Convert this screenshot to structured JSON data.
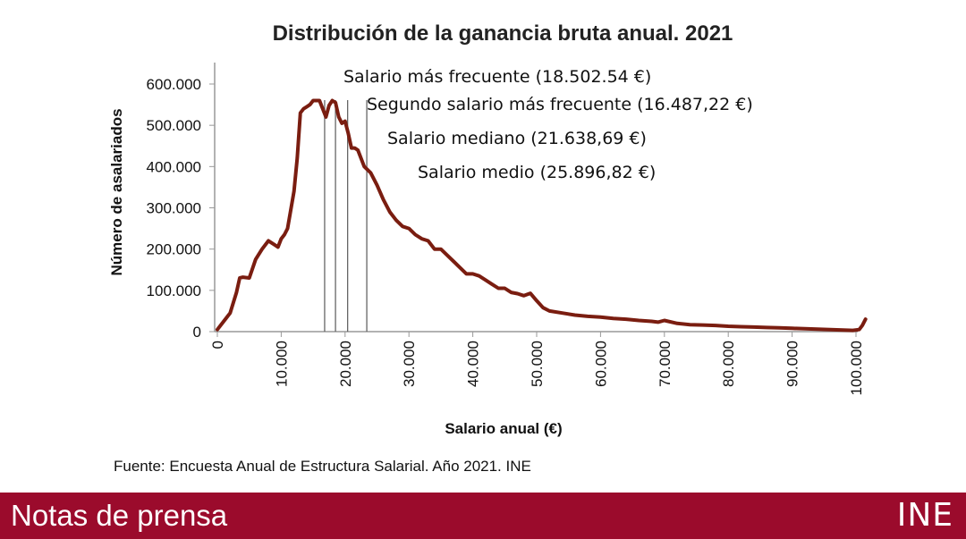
{
  "chart_data": {
    "type": "line",
    "title": "Distribución de la ganancia bruta anual. 2021",
    "xlabel": "Salario anual (€)",
    "ylabel": "Número de asalariados",
    "xlim": [
      0,
      102000
    ],
    "ylim": [
      0,
      650000
    ],
    "x_ticks": [
      0,
      10000,
      20000,
      30000,
      40000,
      50000,
      60000,
      70000,
      80000,
      90000,
      100000
    ],
    "x_tick_labels": [
      "0",
      "10.000",
      "20.000",
      "30.000",
      "40.000",
      "50.000",
      "60.000",
      "70.000",
      "80.000",
      "90.000",
      "100.000"
    ],
    "y_ticks": [
      0,
      100000,
      200000,
      300000,
      400000,
      500000,
      600000
    ],
    "y_tick_labels": [
      "0",
      "100.000",
      "200.000",
      "300.000",
      "400.000",
      "500.000",
      "600.000"
    ],
    "line_color": "#7a1d10",
    "series": [
      {
        "x": [
          0,
          1000,
          2000,
          3000,
          3500,
          4000,
          5000,
          6000,
          7000,
          8000,
          9000,
          9500,
          10000,
          10500,
          11000,
          12000,
          12500,
          13000,
          13500,
          14000,
          14500,
          15000,
          16000,
          17000,
          17500,
          18000,
          18500,
          19000,
          19500,
          20000,
          20500,
          21000,
          21500,
          22000,
          23000,
          24000,
          25000,
          26000,
          27000,
          28000,
          29000,
          30000,
          31000,
          32000,
          33000,
          34000,
          35000,
          36000,
          37000,
          38000,
          39000,
          40000,
          41000,
          42000,
          43000,
          44000,
          45000,
          46000,
          47000,
          48000,
          49000,
          50000,
          51000,
          52000,
          54000,
          56000,
          58000,
          60000,
          62000,
          64000,
          66000,
          68000,
          69000,
          70000,
          72000,
          74000,
          76000,
          78000,
          80000,
          82000,
          84000,
          86000,
          88000,
          90000,
          92000,
          94000,
          96000,
          98000,
          99500,
          100500,
          101000,
          101500
        ],
        "y": [
          5000,
          25000,
          45000,
          95000,
          130000,
          132000,
          130000,
          175000,
          200000,
          220000,
          210000,
          205000,
          225000,
          235000,
          250000,
          340000,
          420000,
          530000,
          540000,
          545000,
          550000,
          560000,
          560000,
          520000,
          548000,
          560000,
          555000,
          520000,
          505000,
          510000,
          480000,
          445000,
          445000,
          440000,
          400000,
          385000,
          355000,
          320000,
          290000,
          270000,
          255000,
          250000,
          235000,
          225000,
          220000,
          200000,
          200000,
          185000,
          170000,
          155000,
          140000,
          140000,
          135000,
          125000,
          115000,
          105000,
          105000,
          95000,
          92000,
          87000,
          93000,
          75000,
          58000,
          50000,
          45000,
          40000,
          37000,
          35000,
          32000,
          30000,
          27000,
          25000,
          23000,
          27000,
          20000,
          17000,
          16000,
          15000,
          13000,
          12000,
          11000,
          10000,
          9000,
          8000,
          7000,
          6000,
          5000,
          4000,
          3000,
          5000,
          15000,
          30000
        ]
      }
    ],
    "reference_lines": [
      16800,
      18500,
      20400,
      23400
    ],
    "annotations": [
      "Salario más frecuente (18.502.54 €)",
      "Segundo salario más frecuente (16.487,22 €)",
      "Salario mediano (21.638,69 €)",
      "Salario medio (25.896,82 €)"
    ],
    "grid": false,
    "legend": "none"
  },
  "source_text": "Fuente: Encuesta Anual de Estructura Salarial. Año 2021. INE",
  "footer": {
    "label": "Notas de prensa",
    "logo_text": "INE",
    "bg_color": "#9b0b2c"
  }
}
